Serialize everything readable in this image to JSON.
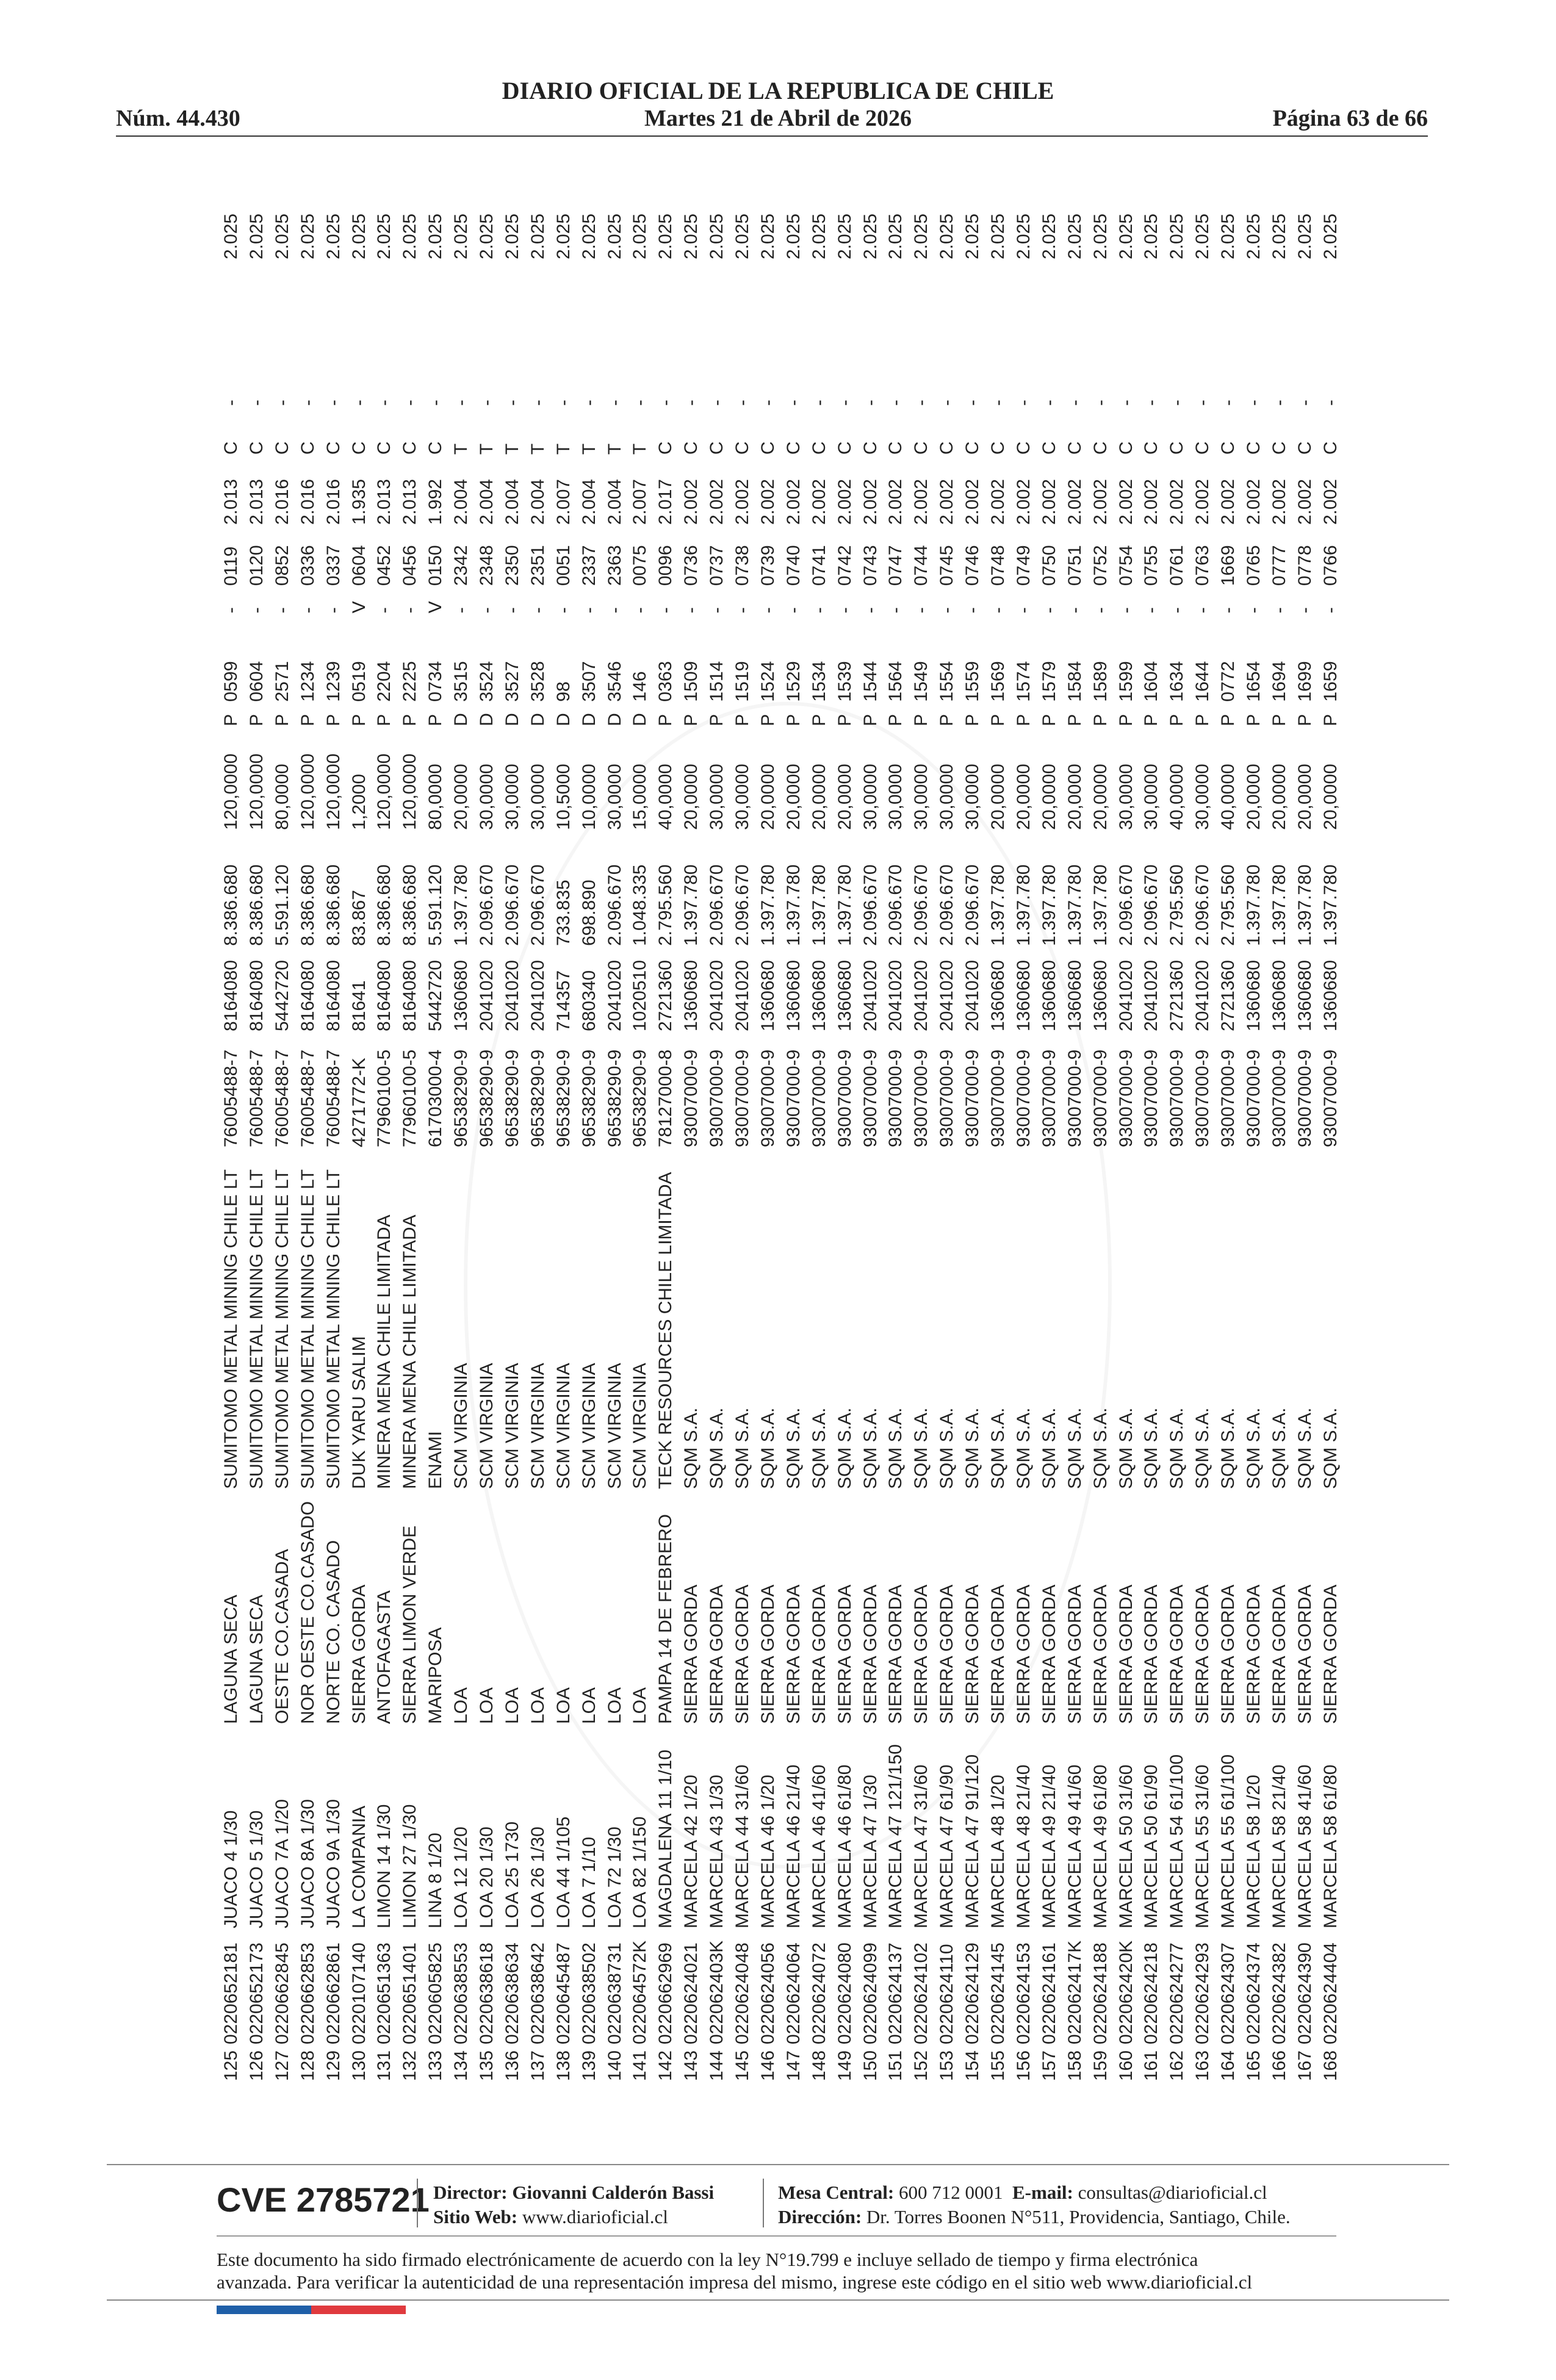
{
  "header": {
    "title": "DIARIO OFICIAL DE LA REPUBLICA DE CHILE",
    "number": "Núm. 44.430",
    "date": "Martes 21 de Abril de 2026",
    "page": "Página 63 de 66"
  },
  "table": {
    "rows": [
      [
        "125",
        "0220652181",
        "JUACO 4 1/30",
        "LAGUNA SECA",
        "SUMITOMO METAL MINING CHILE LT",
        "76005488-7",
        "8164080",
        "8.386.680",
        "120,0000",
        "P",
        "0599",
        "-",
        "0119",
        "2.013",
        "C",
        "-",
        "2.025"
      ],
      [
        "126",
        "0220652173",
        "JUACO 5 1/30",
        "LAGUNA SECA",
        "SUMITOMO METAL MINING CHILE LT",
        "76005488-7",
        "8164080",
        "8.386.680",
        "120,0000",
        "P",
        "0604",
        "-",
        "0120",
        "2.013",
        "C",
        "-",
        "2.025"
      ],
      [
        "127",
        "0220662845",
        "JUACO 7A 1/20",
        "OESTE CO.CASADA",
        "SUMITOMO METAL MINING CHILE LT",
        "76005488-7",
        "5442720",
        "5.591.120",
        "80,0000",
        "P",
        "2571",
        "-",
        "0852",
        "2.016",
        "C",
        "-",
        "2.025"
      ],
      [
        "128",
        "0220662853",
        "JUACO 8A 1/30",
        "NOR OESTE CO.CASADO",
        "SUMITOMO METAL MINING CHILE LT",
        "76005488-7",
        "8164080",
        "8.386.680",
        "120,0000",
        "P",
        "1234",
        "-",
        "0336",
        "2.016",
        "C",
        "-",
        "2.025"
      ],
      [
        "129",
        "0220662861",
        "JUACO 9A 1/30",
        "NORTE CO. CASADO",
        "SUMITOMO METAL MINING CHILE LT",
        "76005488-7",
        "8164080",
        "8.386.680",
        "120,0000",
        "P",
        "1239",
        "-",
        "0337",
        "2.016",
        "C",
        "-",
        "2.025"
      ],
      [
        "130",
        "0220107140",
        "LA COMPANIA",
        "SIERRA GORDA",
        "DUK YARU SALIM",
        "4271772-K",
        "81641",
        "83.867",
        "1,2000",
        "P",
        "0519",
        "V",
        "0604",
        "1.935",
        "C",
        "-",
        "2.025"
      ],
      [
        "131",
        "0220651363",
        "LIMON 14 1/30",
        "ANTOFAGASTA",
        "MINERA MENA CHILE LIMITADA",
        "77960100-5",
        "8164080",
        "8.386.680",
        "120,0000",
        "P",
        "2204",
        "-",
        "0452",
        "2.013",
        "C",
        "-",
        "2.025"
      ],
      [
        "132",
        "0220651401",
        "LIMON 27 1/30",
        "SIERRA LIMON VERDE",
        "MINERA MENA CHILE LIMITADA",
        "77960100-5",
        "8164080",
        "8.386.680",
        "120,0000",
        "P",
        "2225",
        "-",
        "0456",
        "2.013",
        "C",
        "-",
        "2.025"
      ],
      [
        "133",
        "0220605825",
        "LINA 8 1/20",
        "MARIPOSA",
        "ENAMI",
        "61703000-4",
        "5442720",
        "5.591.120",
        "80,0000",
        "P",
        "0734",
        "V",
        "0150",
        "1.992",
        "C",
        "-",
        "2.025"
      ],
      [
        "134",
        "0220638553",
        "LOA 12 1/20",
        "LOA",
        "SCM VIRGINIA",
        "96538290-9",
        "1360680",
        "1.397.780",
        "20,0000",
        "D",
        "3515",
        "-",
        "2342",
        "2.004",
        "T",
        "-",
        "2.025"
      ],
      [
        "135",
        "0220638618",
        "LOA 20 1/30",
        "LOA",
        "SCM VIRGINIA",
        "96538290-9",
        "2041020",
        "2.096.670",
        "30,0000",
        "D",
        "3524",
        "-",
        "2348",
        "2.004",
        "T",
        "-",
        "2.025"
      ],
      [
        "136",
        "0220638634",
        "LOA 25 1730",
        "LOA",
        "SCM VIRGINIA",
        "96538290-9",
        "2041020",
        "2.096.670",
        "30,0000",
        "D",
        "3527",
        "-",
        "2350",
        "2.004",
        "T",
        "-",
        "2.025"
      ],
      [
        "137",
        "0220638642",
        "LOA 26 1/30",
        "LOA",
        "SCM VIRGINIA",
        "96538290-9",
        "2041020",
        "2.096.670",
        "30,0000",
        "D",
        "3528",
        "-",
        "2351",
        "2.004",
        "T",
        "-",
        "2.025"
      ],
      [
        "138",
        "0220645487",
        "LOA 44 1/105",
        "LOA",
        "SCM VIRGINIA",
        "96538290-9",
        "714357",
        "733.835",
        "10,5000",
        "D",
        "98",
        "-",
        "0051",
        "2.007",
        "T",
        "-",
        "2.025"
      ],
      [
        "139",
        "0220638502",
        "LOA 7 1/10",
        "LOA",
        "SCM VIRGINIA",
        "96538290-9",
        "680340",
        "698.890",
        "10,0000",
        "D",
        "3507",
        "-",
        "2337",
        "2.004",
        "T",
        "-",
        "2.025"
      ],
      [
        "140",
        "0220638731",
        "LOA 72 1/30",
        "LOA",
        "SCM VIRGINIA",
        "96538290-9",
        "2041020",
        "2.096.670",
        "30,0000",
        "D",
        "3546",
        "-",
        "2363",
        "2.004",
        "T",
        "-",
        "2.025"
      ],
      [
        "141",
        "022064572K",
        "LOA 82 1/150",
        "LOA",
        "SCM VIRGINIA",
        "96538290-9",
        "1020510",
        "1.048.335",
        "15,0000",
        "D",
        "146",
        "-",
        "0075",
        "2.007",
        "T",
        "-",
        "2.025"
      ],
      [
        "142",
        "0220662969",
        "MAGDALENA 11 1/10",
        "PAMPA 14 DE FEBRERO",
        "TECK RESOURCES CHILE LIMITADA",
        "78127000-8",
        "2721360",
        "2.795.560",
        "40,0000",
        "P",
        "0363",
        "-",
        "0096",
        "2.017",
        "C",
        "-",
        "2.025"
      ],
      [
        "143",
        "0220624021",
        "MARCELA 42 1/20",
        "SIERRA GORDA",
        "SQM S.A.",
        "93007000-9",
        "1360680",
        "1.397.780",
        "20,0000",
        "P",
        "1509",
        "-",
        "0736",
        "2.002",
        "C",
        "-",
        "2.025"
      ],
      [
        "144",
        "022062403K",
        "MARCELA 43 1/30",
        "SIERRA GORDA",
        "SQM S.A.",
        "93007000-9",
        "2041020",
        "2.096.670",
        "30,0000",
        "P",
        "1514",
        "-",
        "0737",
        "2.002",
        "C",
        "-",
        "2.025"
      ],
      [
        "145",
        "0220624048",
        "MARCELA 44 31/60",
        "SIERRA GORDA",
        "SQM S.A.",
        "93007000-9",
        "2041020",
        "2.096.670",
        "30,0000",
        "P",
        "1519",
        "-",
        "0738",
        "2.002",
        "C",
        "-",
        "2.025"
      ],
      [
        "146",
        "0220624056",
        "MARCELA 46 1/20",
        "SIERRA GORDA",
        "SQM S.A.",
        "93007000-9",
        "1360680",
        "1.397.780",
        "20,0000",
        "P",
        "1524",
        "-",
        "0739",
        "2.002",
        "C",
        "-",
        "2.025"
      ],
      [
        "147",
        "0220624064",
        "MARCELA 46 21/40",
        "SIERRA GORDA",
        "SQM S.A.",
        "93007000-9",
        "1360680",
        "1.397.780",
        "20,0000",
        "P",
        "1529",
        "-",
        "0740",
        "2.002",
        "C",
        "-",
        "2.025"
      ],
      [
        "148",
        "0220624072",
        "MARCELA 46 41/60",
        "SIERRA GORDA",
        "SQM S.A.",
        "93007000-9",
        "1360680",
        "1.397.780",
        "20,0000",
        "P",
        "1534",
        "-",
        "0741",
        "2.002",
        "C",
        "-",
        "2.025"
      ],
      [
        "149",
        "0220624080",
        "MARCELA 46 61/80",
        "SIERRA GORDA",
        "SQM S.A.",
        "93007000-9",
        "1360680",
        "1.397.780",
        "20,0000",
        "P",
        "1539",
        "-",
        "0742",
        "2.002",
        "C",
        "-",
        "2.025"
      ],
      [
        "150",
        "0220624099",
        "MARCELA 47 1/30",
        "SIERRA GORDA",
        "SQM S.A.",
        "93007000-9",
        "2041020",
        "2.096.670",
        "30,0000",
        "P",
        "1544",
        "-",
        "0743",
        "2.002",
        "C",
        "-",
        "2.025"
      ],
      [
        "151",
        "0220624137",
        "MARCELA 47 121/150",
        "SIERRA GORDA",
        "SQM S.A.",
        "93007000-9",
        "2041020",
        "2.096.670",
        "30,0000",
        "P",
        "1564",
        "-",
        "0747",
        "2.002",
        "C",
        "-",
        "2.025"
      ],
      [
        "152",
        "0220624102",
        "MARCELA 47 31/60",
        "SIERRA GORDA",
        "SQM S.A.",
        "93007000-9",
        "2041020",
        "2.096.670",
        "30,0000",
        "P",
        "1549",
        "-",
        "0744",
        "2.002",
        "C",
        "-",
        "2.025"
      ],
      [
        "153",
        "0220624110",
        "MARCELA 47 61/90",
        "SIERRA GORDA",
        "SQM S.A.",
        "93007000-9",
        "2041020",
        "2.096.670",
        "30,0000",
        "P",
        "1554",
        "-",
        "0745",
        "2.002",
        "C",
        "-",
        "2.025"
      ],
      [
        "154",
        "0220624129",
        "MARCELA 47 91/120",
        "SIERRA GORDA",
        "SQM S.A.",
        "93007000-9",
        "2041020",
        "2.096.670",
        "30,0000",
        "P",
        "1559",
        "-",
        "0746",
        "2.002",
        "C",
        "-",
        "2.025"
      ],
      [
        "155",
        "0220624145",
        "MARCELA 48 1/20",
        "SIERRA GORDA",
        "SQM S.A.",
        "93007000-9",
        "1360680",
        "1.397.780",
        "20,0000",
        "P",
        "1569",
        "-",
        "0748",
        "2.002",
        "C",
        "-",
        "2.025"
      ],
      [
        "156",
        "0220624153",
        "MARCELA 48 21/40",
        "SIERRA GORDA",
        "SQM S.A.",
        "93007000-9",
        "1360680",
        "1.397.780",
        "20,0000",
        "P",
        "1574",
        "-",
        "0749",
        "2.002",
        "C",
        "-",
        "2.025"
      ],
      [
        "157",
        "0220624161",
        "MARCELA 49 21/40",
        "SIERRA GORDA",
        "SQM S.A.",
        "93007000-9",
        "1360680",
        "1.397.780",
        "20,0000",
        "P",
        "1579",
        "-",
        "0750",
        "2.002",
        "C",
        "-",
        "2.025"
      ],
      [
        "158",
        "022062417K",
        "MARCELA 49 41/60",
        "SIERRA GORDA",
        "SQM S.A.",
        "93007000-9",
        "1360680",
        "1.397.780",
        "20,0000",
        "P",
        "1584",
        "-",
        "0751",
        "2.002",
        "C",
        "-",
        "2.025"
      ],
      [
        "159",
        "0220624188",
        "MARCELA 49 61/80",
        "SIERRA GORDA",
        "SQM S.A.",
        "93007000-9",
        "1360680",
        "1.397.780",
        "20,0000",
        "P",
        "1589",
        "-",
        "0752",
        "2.002",
        "C",
        "-",
        "2.025"
      ],
      [
        "160",
        "022062420K",
        "MARCELA 50 31/60",
        "SIERRA GORDA",
        "SQM S.A.",
        "93007000-9",
        "2041020",
        "2.096.670",
        "30,0000",
        "P",
        "1599",
        "-",
        "0754",
        "2.002",
        "C",
        "-",
        "2.025"
      ],
      [
        "161",
        "0220624218",
        "MARCELA 50 61/90",
        "SIERRA GORDA",
        "SQM S.A.",
        "93007000-9",
        "2041020",
        "2.096.670",
        "30,0000",
        "P",
        "1604",
        "-",
        "0755",
        "2.002",
        "C",
        "-",
        "2.025"
      ],
      [
        "162",
        "0220624277",
        "MARCELA 54 61/100",
        "SIERRA GORDA",
        "SQM S.A.",
        "93007000-9",
        "2721360",
        "2.795.560",
        "40,0000",
        "P",
        "1634",
        "-",
        "0761",
        "2.002",
        "C",
        "-",
        "2.025"
      ],
      [
        "163",
        "0220624293",
        "MARCELA 55 31/60",
        "SIERRA GORDA",
        "SQM S.A.",
        "93007000-9",
        "2041020",
        "2.096.670",
        "30,0000",
        "P",
        "1644",
        "-",
        "0763",
        "2.002",
        "C",
        "-",
        "2.025"
      ],
      [
        "164",
        "0220624307",
        "MARCELA 55 61/100",
        "SIERRA GORDA",
        "SQM S.A.",
        "93007000-9",
        "2721360",
        "2.795.560",
        "40,0000",
        "P",
        "0772",
        "-",
        "1669",
        "2.002",
        "C",
        "-",
        "2.025"
      ],
      [
        "165",
        "0220624374",
        "MARCELA 58 1/20",
        "SIERRA GORDA",
        "SQM S.A.",
        "93007000-9",
        "1360680",
        "1.397.780",
        "20,0000",
        "P",
        "1654",
        "-",
        "0765",
        "2.002",
        "C",
        "-",
        "2.025"
      ],
      [
        "166",
        "0220624382",
        "MARCELA 58 21/40",
        "SIERRA GORDA",
        "SQM S.A.",
        "93007000-9",
        "1360680",
        "1.397.780",
        "20,0000",
        "P",
        "1694",
        "-",
        "0777",
        "2.002",
        "C",
        "-",
        "2.025"
      ],
      [
        "167",
        "0220624390",
        "MARCELA 58 41/60",
        "SIERRA GORDA",
        "SQM S.A.",
        "93007000-9",
        "1360680",
        "1.397.780",
        "20,0000",
        "P",
        "1699",
        "-",
        "0778",
        "2.002",
        "C",
        "-",
        "2.025"
      ],
      [
        "168",
        "0220624404",
        "MARCELA 58 61/80",
        "SIERRA GORDA",
        "SQM S.A.",
        "93007000-9",
        "1360680",
        "1.397.780",
        "20,0000",
        "P",
        "1659",
        "-",
        "0766",
        "2.002",
        "C",
        "-",
        "2.025"
      ]
    ]
  },
  "footer": {
    "cve": "CVE 2785721",
    "director_label": "Director:",
    "director": "Giovanni Calderón Bassi",
    "web_label": "Sitio Web:",
    "web": "www.diarioficial.cl",
    "mesa_label": "Mesa Central:",
    "mesa": "600 712 0001",
    "email_label": "E-mail:",
    "email": "consultas@diarioficial.cl",
    "address_label": "Dirección:",
    "address": "Dr. Torres Boonen N°511, Providencia, Santiago, Chile.",
    "notice_line1": "Este documento ha sido firmado electrónicamente de acuerdo con la ley N°19.799 e incluye sellado de tiempo y firma electrónica",
    "notice_line2": "avanzada. Para verificar la autenticidad de una representación impresa del mismo, ingrese este código en el sitio web www.diarioficial.cl"
  },
  "colors": {
    "blue_bar": "#1f5fa8",
    "red_bar": "#e03a3e"
  }
}
